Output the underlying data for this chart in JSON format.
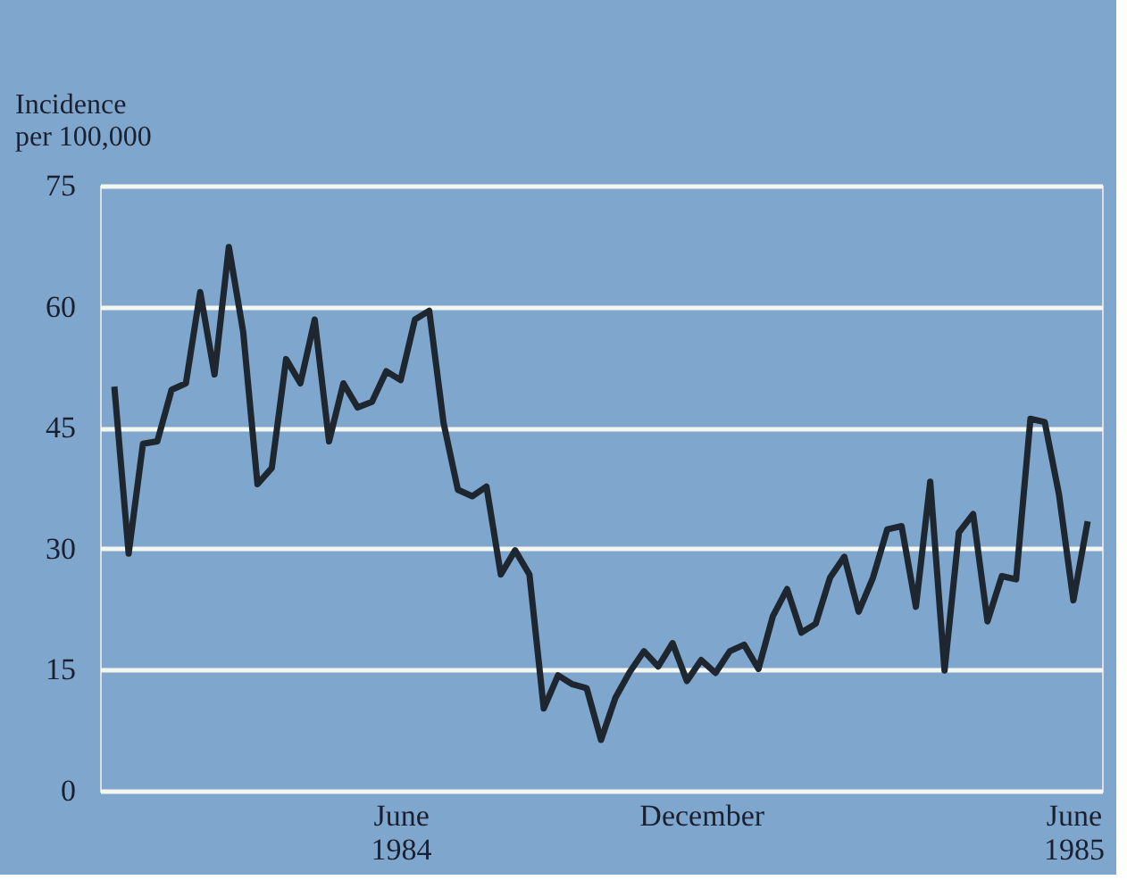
{
  "chart_data": {
    "type": "line",
    "ylabel": "Incidence\nper 100,000",
    "categories": [
      null,
      null,
      null,
      null,
      null,
      null,
      null,
      null,
      null,
      null,
      null,
      null,
      null,
      null,
      null,
      null,
      null,
      null,
      null,
      null,
      "June 1984",
      null,
      null,
      null,
      null,
      null,
      null,
      null,
      null,
      null,
      null,
      null,
      null,
      null,
      null,
      null,
      null,
      null,
      null,
      null,
      null,
      "December",
      null,
      null,
      null,
      null,
      null,
      null,
      null,
      null,
      null,
      null,
      null,
      null,
      null,
      null,
      null,
      null,
      null,
      null,
      null,
      null,
      null,
      null,
      null,
      null,
      null,
      "June 1985",
      null
    ],
    "series": [
      {
        "color": "#1e2730",
        "values": [
          50.1,
          29.4,
          43,
          43.3,
          49.7,
          50.5,
          61.8,
          51.6,
          67.4,
          56.9,
          38,
          40,
          53.5,
          50.5,
          58.4,
          43.3,
          50.5,
          47.5,
          48.2,
          52,
          50.9,
          58.4,
          59.5,
          45.6,
          37.3,
          36.5,
          37.7,
          26.8,
          29.8,
          26.8,
          10.2,
          14.3,
          13.2,
          12.7,
          6.3,
          11.5,
          14.7,
          17.3,
          15.4,
          18.3,
          13.6,
          16.2,
          14.6,
          17.3,
          18.1,
          15.1,
          21.6,
          25,
          19.6,
          20.7,
          26.4,
          29,
          22.2,
          26.4,
          32.4,
          32.8,
          22.8,
          38.3,
          14.9,
          32,
          34.3,
          21,
          26.6,
          26.2,
          46.1,
          45.7,
          36.7,
          23.6,
          33.4
        ]
      }
    ],
    "ylim": [
      0,
      75
    ],
    "yticks": [
      0,
      15,
      30,
      45,
      60,
      75
    ],
    "grid": "y",
    "line_style": "solid",
    "marker": "none"
  }
}
